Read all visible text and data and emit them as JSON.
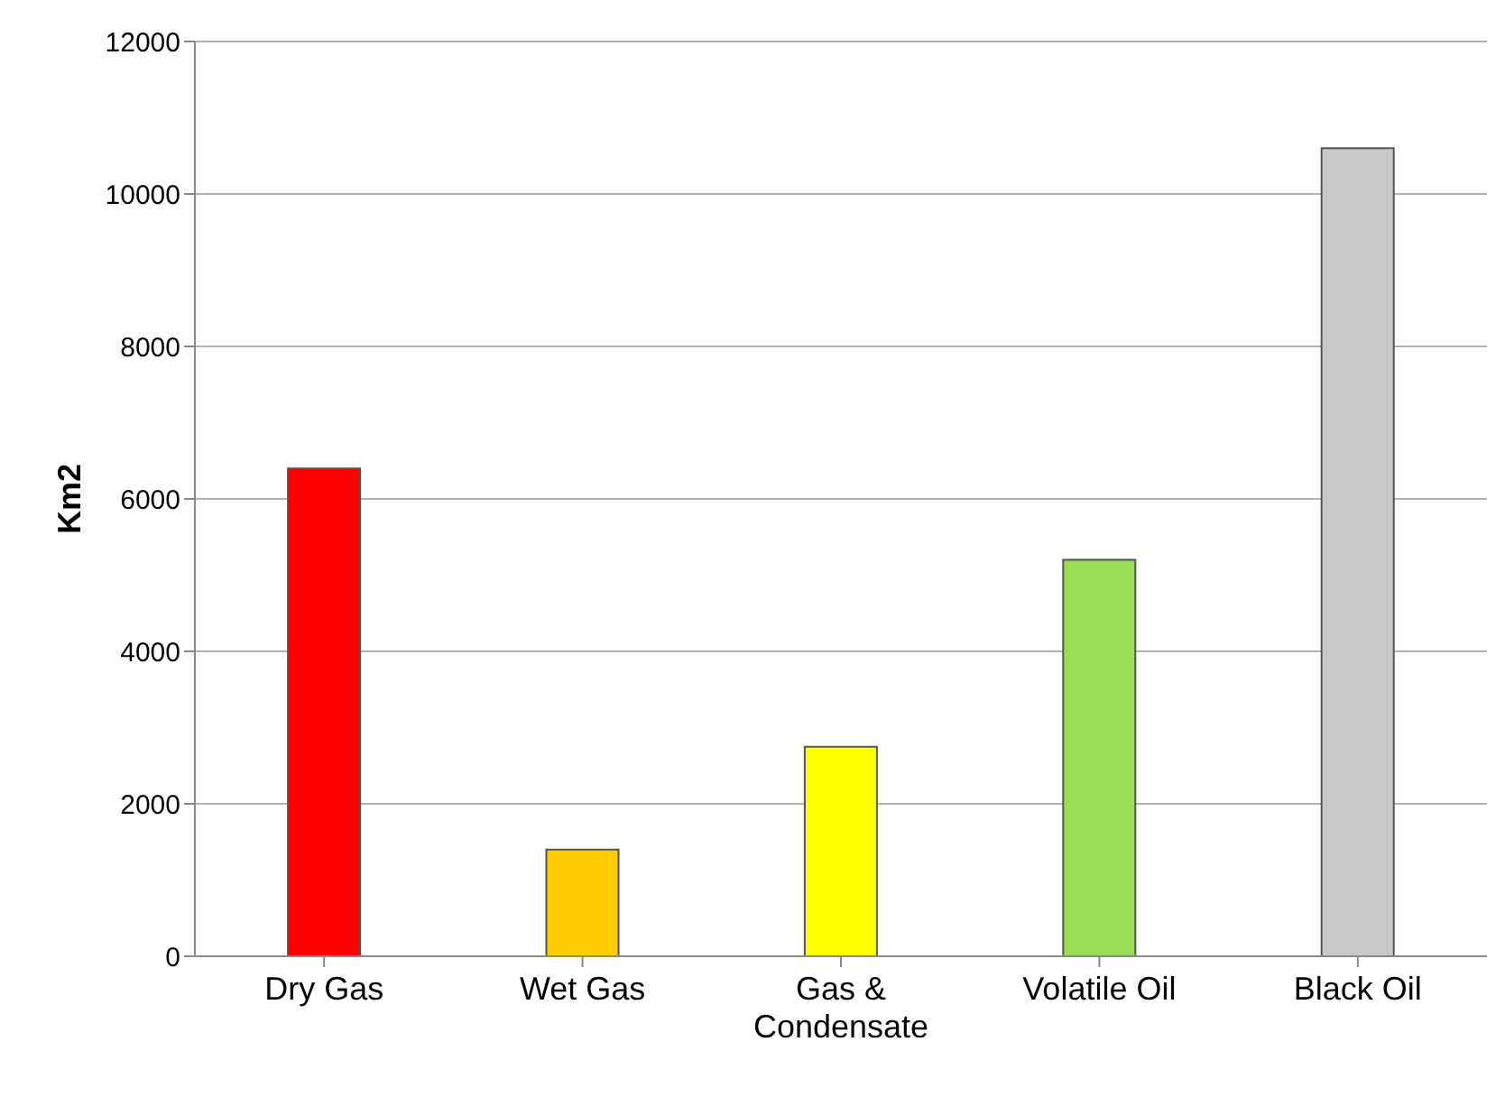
{
  "chart_data": {
    "type": "bar",
    "ylabel": "Km2",
    "categories": [
      "Dry Gas",
      "Wet Gas",
      "Gas & Condensate",
      "Volatile Oil",
      "Black Oil"
    ],
    "values": [
      6400,
      1400,
      2750,
      5200,
      10600
    ],
    "colors": [
      "#ff0000",
      "#ffcc00",
      "#ffff00",
      "#99dd55",
      "#c8c8c8"
    ],
    "ylim": [
      0,
      12000
    ],
    "yticks": [
      0,
      2000,
      4000,
      6000,
      8000,
      10000,
      12000
    ],
    "grid": "y"
  }
}
